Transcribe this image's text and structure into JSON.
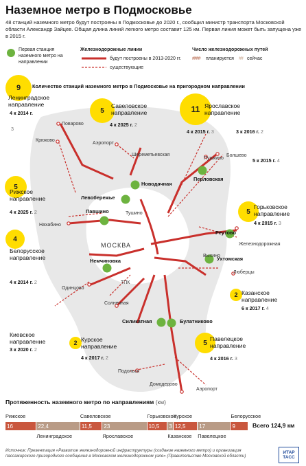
{
  "title": "Наземное метро в Подмосковье",
  "intro": "48 станций наземного метро будут построены в Подмосковье до 2020 г., сообщил министр транспорта Московской области Александр Зайцев. Общая длина линий легкого метро составит 125 км. Первая линия может быть запущена уже в 2015 г.",
  "legend": {
    "first_station": "Первая станция наземного метро на направлении",
    "rail_lines": "Железнодорожные линии",
    "rail_planned": "будут построены в 2013-2020 гг.",
    "rail_existing": "существующие",
    "tracks_title": "Число железнодорожных путей",
    "tracks_planned": "планируется",
    "tracks_now": "сейчас",
    "stations_note": "Количество станций наземного метро в Подмосковье на пригородном направлении"
  },
  "colors": {
    "red": "#c9302c",
    "yellow": "#ffdd00",
    "green": "#6db33f",
    "land": "#e8e8e8",
    "brown": "#b5654a"
  },
  "directions": {
    "leningrad": {
      "count": "9",
      "name1": "Ленинградское",
      "name2": "направление",
      "plan": "4 к 2014 г.",
      "now": "3"
    },
    "savelovo": {
      "count": "5",
      "name1": "Савеловское",
      "name2": "направление",
      "plan": "4 к 2025 г.",
      "now": "2"
    },
    "yaroslavl": {
      "count": "11",
      "name1": "Ярославское",
      "name2": "направление",
      "plan_a": "4 к 2015 г.",
      "now_a": "3",
      "plan_b": "3 к 2016 г.",
      "now_b": "2",
      "plan_c": "5 к 2015 г.",
      "now_c": "4"
    },
    "riga": {
      "count": "5",
      "name1": "Рижское",
      "name2": "направление",
      "plan": "4 к 2025 г.",
      "now": "2"
    },
    "gorky": {
      "count": "5",
      "name1": "Горьковское",
      "name2": "направление",
      "plan": "4 к 2015 г.",
      "now": "3"
    },
    "belarus": {
      "count": "4",
      "name1": "Белорусское",
      "name2": "направление",
      "plan": "4 к 2014 г.",
      "now": "2"
    },
    "kazan": {
      "count": "2",
      "name1": "Казанское",
      "name2": "направление",
      "plan": "6 к 2017 г.",
      "now": "4"
    },
    "kiev": {
      "name1": "Киевское",
      "name2": "направление",
      "plan": "3 к 2020 г.",
      "now": "2"
    },
    "kursk": {
      "count": "2",
      "name1": "Курское",
      "name2": "направление",
      "plan": "4 к 2017 г.",
      "now": "2"
    },
    "paveletsky": {
      "count": "5",
      "name1": "Павелецкое",
      "name2": "направление",
      "plan": "4 к 2016 г.",
      "now": "3"
    }
  },
  "stations": {
    "novodachnaya": "Новодачная",
    "levoberezhye": "Левобережье",
    "pavshino": "Павшино",
    "perlovskaya": "Перловская",
    "reutovo": "Реутово",
    "nemchinovka": "Немчиновка",
    "ukhtomskaya": "Ухтомская",
    "silikatnaya": "Силикатная",
    "bulatnikovo": "Булатниково"
  },
  "places": {
    "povarovo": "Поварово",
    "kryukovo": "Крюково",
    "airport1": "Аэропорт",
    "sheremetyevskaya": "Шереметьевская",
    "pushkino": "Пушкино",
    "bolshevo": "Болшево",
    "tushino": "Тушино",
    "nakhabino": "Нахабино",
    "moscow": "МОСКВА",
    "zheleznodorozhnaya": "Железнодорожная",
    "vykhino": "Выхино",
    "lyubertsy": "Люберцы",
    "odintsovo": "Одинцово",
    "tpk": "ТПК",
    "solnechnaya": "Солнечная",
    "podolsk": "Подольск",
    "domodedovo": "Домодедово",
    "airport2": "Аэропорт"
  },
  "lengths": {
    "title": "Протяженность наземного метро по направлениям",
    "unit": "(км)",
    "segments": [
      {
        "name": "Рижское",
        "value": "16",
        "km": 16
      },
      {
        "name": "Ленинградское",
        "value": "22,4",
        "km": 22.4
      },
      {
        "name": "Савеловское",
        "value": "11,5",
        "km": 11.5
      },
      {
        "name": "Ярославское",
        "value": "23",
        "km": 23
      },
      {
        "name": "Горьковское",
        "value": "10,5",
        "km": 10.5
      },
      {
        "name": "Казанское",
        "value": "3",
        "km": 3
      },
      {
        "name": "Курское",
        "value": "12,5",
        "km": 12.5
      },
      {
        "name": "Павелецкое",
        "value": "17",
        "km": 17
      },
      {
        "name": "Белорусское",
        "value": "9",
        "km": 9
      }
    ],
    "total": "Всего 124,9 км"
  },
  "source": "Источник: Презентация «Развитие железнодорожной инфраструктуры (создание наземного метро) и организация пассажирского пригородного сообщения в Московском железнодорожном узле» (Правительство Московской области)",
  "agency": "ИТАР ТАСС"
}
